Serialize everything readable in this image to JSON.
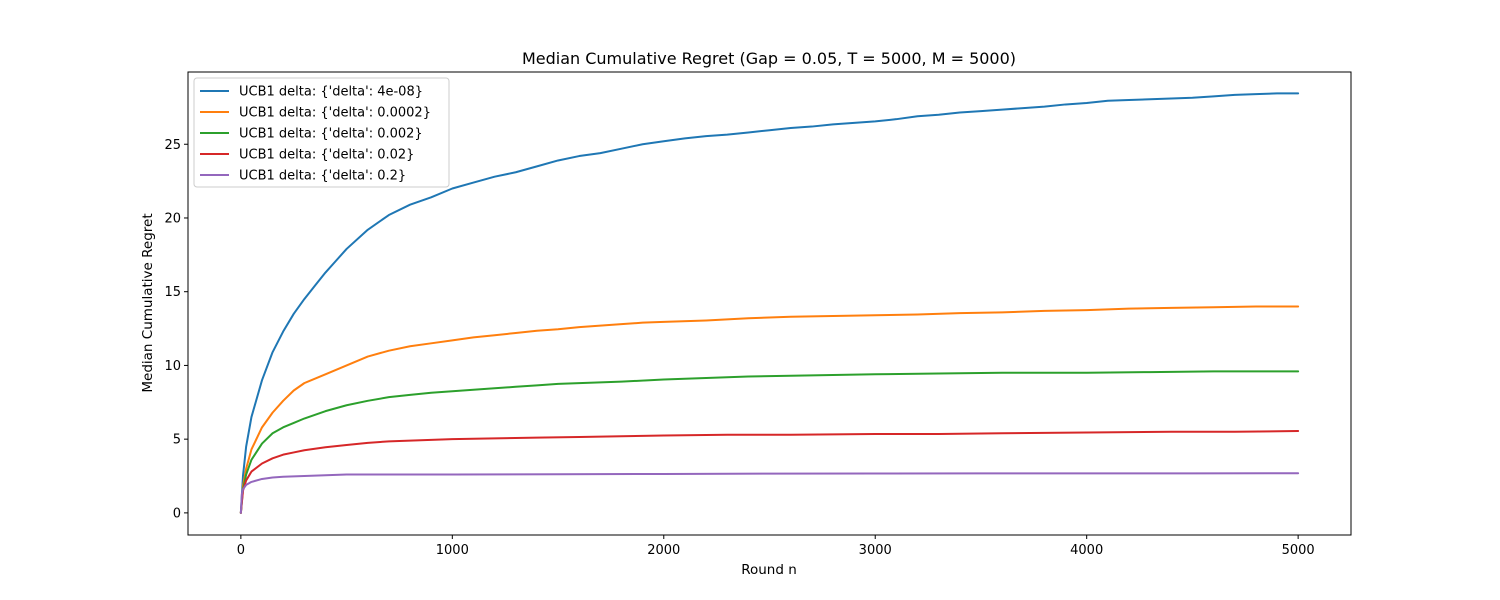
{
  "chart_data": {
    "type": "line",
    "title": "Median Cumulative Regret (Gap = 0.05, T = 5000, M = 5000)",
    "xlabel": "Round n",
    "ylabel": "Median Cumulative Regret",
    "xlim": [
      -250,
      5250
    ],
    "ylim": [
      -1.5,
      29.9
    ],
    "xticks": [
      0,
      1000,
      2000,
      3000,
      4000,
      5000
    ],
    "yticks": [
      0,
      5,
      10,
      15,
      20,
      25
    ],
    "grid": false,
    "legend_position": "top-left",
    "series": [
      {
        "name": "UCB1 delta: {'delta': 4e-08}",
        "color": "#1f77b4",
        "points": [
          [
            0,
            0
          ],
          [
            10,
            2.5
          ],
          [
            25,
            4.5
          ],
          [
            50,
            6.5
          ],
          [
            100,
            9
          ],
          [
            150,
            10.9
          ],
          [
            200,
            12.3
          ],
          [
            250,
            13.5
          ],
          [
            300,
            14.5
          ],
          [
            350,
            15.4
          ],
          [
            400,
            16.3
          ],
          [
            450,
            17.1
          ],
          [
            500,
            17.9
          ],
          [
            600,
            19.2
          ],
          [
            700,
            20.2
          ],
          [
            800,
            20.9
          ],
          [
            900,
            21.4
          ],
          [
            1000,
            22.0
          ],
          [
            1100,
            22.4
          ],
          [
            1200,
            22.8
          ],
          [
            1300,
            23.1
          ],
          [
            1400,
            23.5
          ],
          [
            1500,
            23.9
          ],
          [
            1600,
            24.2
          ],
          [
            1700,
            24.4
          ],
          [
            1800,
            24.7
          ],
          [
            1900,
            25.0
          ],
          [
            2000,
            25.2
          ],
          [
            2100,
            25.4
          ],
          [
            2200,
            25.55
          ],
          [
            2300,
            25.65
          ],
          [
            2400,
            25.8
          ],
          [
            2500,
            25.95
          ],
          [
            2600,
            26.1
          ],
          [
            2700,
            26.2
          ],
          [
            2800,
            26.35
          ],
          [
            2900,
            26.45
          ],
          [
            3000,
            26.55
          ],
          [
            3100,
            26.7
          ],
          [
            3200,
            26.9
          ],
          [
            3300,
            27.0
          ],
          [
            3400,
            27.15
          ],
          [
            3500,
            27.25
          ],
          [
            3600,
            27.35
          ],
          [
            3700,
            27.45
          ],
          [
            3800,
            27.55
          ],
          [
            3900,
            27.7
          ],
          [
            4000,
            27.8
          ],
          [
            4100,
            27.95
          ],
          [
            4200,
            28.0
          ],
          [
            4300,
            28.05
          ],
          [
            4400,
            28.1
          ],
          [
            4500,
            28.15
          ],
          [
            4600,
            28.25
          ],
          [
            4700,
            28.35
          ],
          [
            4800,
            28.4
          ],
          [
            4900,
            28.45
          ],
          [
            5000,
            28.45
          ]
        ]
      },
      {
        "name": "UCB1 delta: {'delta': 0.0002}",
        "color": "#ff7f0e",
        "points": [
          [
            0,
            0
          ],
          [
            10,
            1.8
          ],
          [
            25,
            3.0
          ],
          [
            50,
            4.3
          ],
          [
            100,
            5.8
          ],
          [
            150,
            6.8
          ],
          [
            200,
            7.6
          ],
          [
            250,
            8.3
          ],
          [
            300,
            8.8
          ],
          [
            400,
            9.4
          ],
          [
            500,
            10.0
          ],
          [
            600,
            10.6
          ],
          [
            700,
            11.0
          ],
          [
            800,
            11.3
          ],
          [
            900,
            11.5
          ],
          [
            1000,
            11.7
          ],
          [
            1100,
            11.9
          ],
          [
            1200,
            12.05
          ],
          [
            1300,
            12.2
          ],
          [
            1400,
            12.35
          ],
          [
            1500,
            12.45
          ],
          [
            1600,
            12.6
          ],
          [
            1700,
            12.7
          ],
          [
            1800,
            12.8
          ],
          [
            1900,
            12.9
          ],
          [
            2000,
            12.95
          ],
          [
            2200,
            13.05
          ],
          [
            2400,
            13.2
          ],
          [
            2600,
            13.3
          ],
          [
            2800,
            13.35
          ],
          [
            3000,
            13.4
          ],
          [
            3200,
            13.45
          ],
          [
            3400,
            13.55
          ],
          [
            3600,
            13.6
          ],
          [
            3800,
            13.7
          ],
          [
            4000,
            13.75
          ],
          [
            4200,
            13.85
          ],
          [
            4400,
            13.9
          ],
          [
            4600,
            13.95
          ],
          [
            4800,
            14.0
          ],
          [
            5000,
            14.0
          ]
        ]
      },
      {
        "name": "UCB1 delta: {'delta': 0.002}",
        "color": "#2ca02c",
        "points": [
          [
            0,
            0
          ],
          [
            10,
            1.6
          ],
          [
            25,
            2.6
          ],
          [
            50,
            3.6
          ],
          [
            100,
            4.7
          ],
          [
            150,
            5.4
          ],
          [
            200,
            5.8
          ],
          [
            250,
            6.1
          ],
          [
            300,
            6.4
          ],
          [
            400,
            6.9
          ],
          [
            500,
            7.3
          ],
          [
            600,
            7.6
          ],
          [
            700,
            7.85
          ],
          [
            800,
            8.0
          ],
          [
            900,
            8.15
          ],
          [
            1000,
            8.25
          ],
          [
            1100,
            8.35
          ],
          [
            1200,
            8.45
          ],
          [
            1300,
            8.55
          ],
          [
            1400,
            8.65
          ],
          [
            1500,
            8.75
          ],
          [
            1600,
            8.8
          ],
          [
            1800,
            8.9
          ],
          [
            2000,
            9.05
          ],
          [
            2200,
            9.15
          ],
          [
            2400,
            9.25
          ],
          [
            2600,
            9.3
          ],
          [
            2800,
            9.35
          ],
          [
            3000,
            9.4
          ],
          [
            3300,
            9.45
          ],
          [
            3600,
            9.5
          ],
          [
            4000,
            9.5
          ],
          [
            4300,
            9.55
          ],
          [
            4600,
            9.6
          ],
          [
            5000,
            9.6
          ]
        ]
      },
      {
        "name": "UCB1 delta: {'delta': 0.02}",
        "color": "#d62728",
        "points": [
          [
            0,
            0
          ],
          [
            10,
            1.5
          ],
          [
            25,
            2.2
          ],
          [
            50,
            2.8
          ],
          [
            100,
            3.35
          ],
          [
            150,
            3.7
          ],
          [
            200,
            3.95
          ],
          [
            250,
            4.1
          ],
          [
            300,
            4.25
          ],
          [
            400,
            4.45
          ],
          [
            500,
            4.6
          ],
          [
            600,
            4.75
          ],
          [
            700,
            4.85
          ],
          [
            800,
            4.9
          ],
          [
            900,
            4.95
          ],
          [
            1000,
            5.0
          ],
          [
            1200,
            5.05
          ],
          [
            1400,
            5.1
          ],
          [
            1600,
            5.15
          ],
          [
            1800,
            5.2
          ],
          [
            2000,
            5.25
          ],
          [
            2300,
            5.3
          ],
          [
            2600,
            5.3
          ],
          [
            3000,
            5.35
          ],
          [
            3300,
            5.35
          ],
          [
            3600,
            5.4
          ],
          [
            4000,
            5.45
          ],
          [
            4400,
            5.5
          ],
          [
            4700,
            5.5
          ],
          [
            5000,
            5.55
          ]
        ]
      },
      {
        "name": "UCB1 delta: {'delta': 0.2}",
        "color": "#9467bd",
        "points": [
          [
            0,
            0
          ],
          [
            5,
            1.3
          ],
          [
            10,
            1.6
          ],
          [
            25,
            1.9
          ],
          [
            50,
            2.1
          ],
          [
            100,
            2.3
          ],
          [
            150,
            2.4
          ],
          [
            200,
            2.45
          ],
          [
            300,
            2.5
          ],
          [
            400,
            2.55
          ],
          [
            500,
            2.6
          ],
          [
            700,
            2.6
          ],
          [
            1000,
            2.6
          ],
          [
            1500,
            2.62
          ],
          [
            2000,
            2.64
          ],
          [
            2500,
            2.66
          ],
          [
            3000,
            2.67
          ],
          [
            3500,
            2.68
          ],
          [
            4000,
            2.68
          ],
          [
            4500,
            2.68
          ],
          [
            5000,
            2.69
          ]
        ]
      }
    ]
  }
}
